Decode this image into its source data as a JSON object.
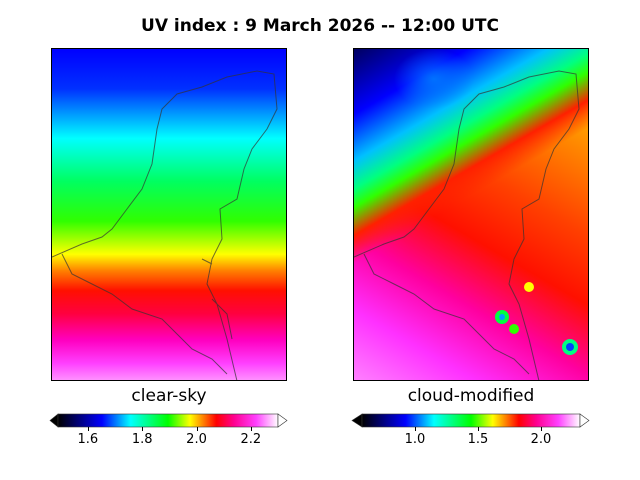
{
  "title": "UV index :  9 March 2026  --  12:00 UTC",
  "panels": [
    {
      "caption": "clear-sky",
      "colorbar": {
        "min": 1.49,
        "max": 2.3,
        "ticks": [
          "1.6",
          "1.8",
          "2.0",
          "2.2"
        ],
        "tick_values": [
          1.6,
          1.8,
          2.0,
          2.2
        ],
        "extend": "both"
      }
    },
    {
      "caption": "cloud-modified",
      "colorbar": {
        "min": 0.58,
        "max": 2.31,
        "ticks": [
          "1.0",
          "1.5",
          "2.0"
        ],
        "tick_values": [
          1.0,
          1.5,
          2.0
        ],
        "extend": "both"
      }
    }
  ],
  "colormap": [
    "#000000",
    "#000080",
    "#0000ff",
    "#00ffff",
    "#00ff00",
    "#ffff00",
    "#ff8000",
    "#ff0000",
    "#ff00a0",
    "#ff40ff",
    "#ffffff"
  ]
}
